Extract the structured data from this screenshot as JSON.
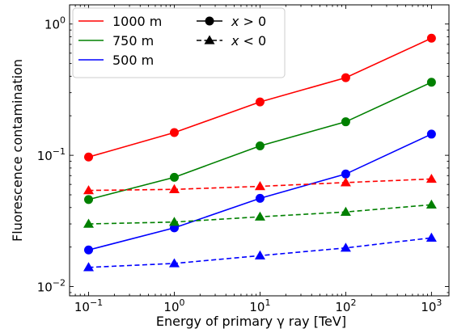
{
  "chart_data": {
    "type": "line",
    "xlabel": "Energy of primary γ ray [TeV]",
    "ylabel": "Fluorescence contamination",
    "xscale": "log",
    "yscale": "log",
    "xlim": [
      0.06,
      1600
    ],
    "ylim": [
      0.0085,
      1.4
    ],
    "x": [
      0.1,
      1,
      10,
      100,
      1000
    ],
    "x_tick_labels": [
      {
        "base": "10",
        "exp": "−1"
      },
      {
        "base": "10",
        "exp": "0"
      },
      {
        "base": "10",
        "exp": "1"
      },
      {
        "base": "10",
        "exp": "2"
      },
      {
        "base": "10",
        "exp": "3"
      }
    ],
    "y_tick_labels": [
      {
        "value": 0.01,
        "base": "10",
        "exp": "−2"
      },
      {
        "value": 0.1,
        "base": "10",
        "exp": "−1"
      },
      {
        "value": 1,
        "base": "10",
        "exp": "0"
      }
    ],
    "series": [
      {
        "name": "1000 m",
        "color": "#ff0000",
        "marker": "circle",
        "linestyle": "solid",
        "values": [
          0.097,
          0.149,
          0.255,
          0.39,
          0.78
        ]
      },
      {
        "name": "750 m",
        "color": "#008000",
        "marker": "circle",
        "linestyle": "solid",
        "values": [
          0.046,
          0.068,
          0.118,
          0.18,
          0.36
        ]
      },
      {
        "name": "500 m",
        "color": "#0000ff",
        "marker": "circle",
        "linestyle": "solid",
        "values": [
          0.019,
          0.028,
          0.047,
          0.072,
          0.145
        ]
      },
      {
        "color": "#ff0000",
        "marker": "triangle",
        "linestyle": "dashed",
        "values": [
          0.054,
          0.055,
          0.058,
          0.062,
          0.066
        ]
      },
      {
        "color": "#008000",
        "marker": "triangle",
        "linestyle": "dashed",
        "values": [
          0.03,
          0.031,
          0.034,
          0.037,
          0.042
        ]
      },
      {
        "color": "#0000ff",
        "marker": "triangle",
        "linestyle": "dashed",
        "values": [
          0.014,
          0.015,
          0.0172,
          0.0197,
          0.0235
        ]
      }
    ],
    "legend": {
      "placement": "top-left",
      "entries": [
        {
          "label": "1000 m",
          "color": "#ff0000",
          "marker": "none",
          "linestyle": "solid"
        },
        {
          "label": "750 m",
          "color": "#008000",
          "marker": "none",
          "linestyle": "solid"
        },
        {
          "label": "500 m",
          "color": "#0000ff",
          "marker": "none",
          "linestyle": "solid"
        },
        {
          "label_var": "x",
          "label_rel": " > 0",
          "color": "#000000",
          "marker": "circle",
          "linestyle": "solid"
        },
        {
          "label_var": "x",
          "label_rel": " < 0",
          "color": "#000000",
          "marker": "triangle",
          "linestyle": "dashed"
        }
      ]
    },
    "grid": false
  }
}
